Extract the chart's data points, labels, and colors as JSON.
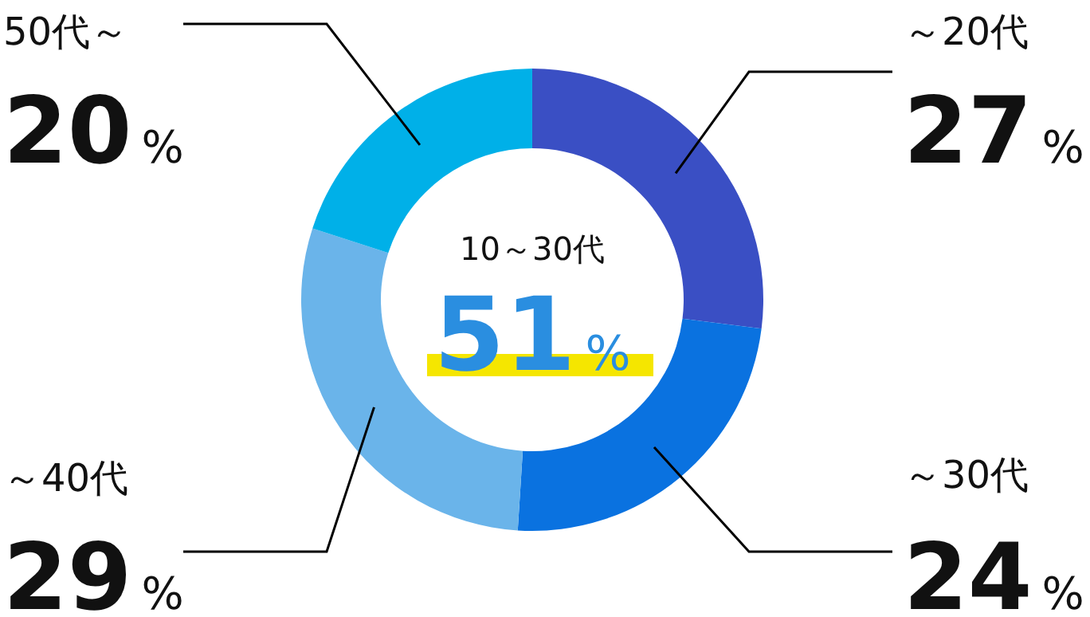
{
  "chart_data": {
    "type": "donut",
    "categories": [
      "～20代",
      "～30代",
      "～40代",
      "50代～"
    ],
    "values": [
      27,
      24,
      29,
      20
    ],
    "colors": [
      "#3a4fc4",
      "#0a72e0",
      "#6ab4ea",
      "#00b0e8"
    ],
    "value_labels": [
      "27%",
      "24%",
      "29%",
      "20%"
    ],
    "annotations": [
      "10～30代",
      "51%"
    ]
  }
}
